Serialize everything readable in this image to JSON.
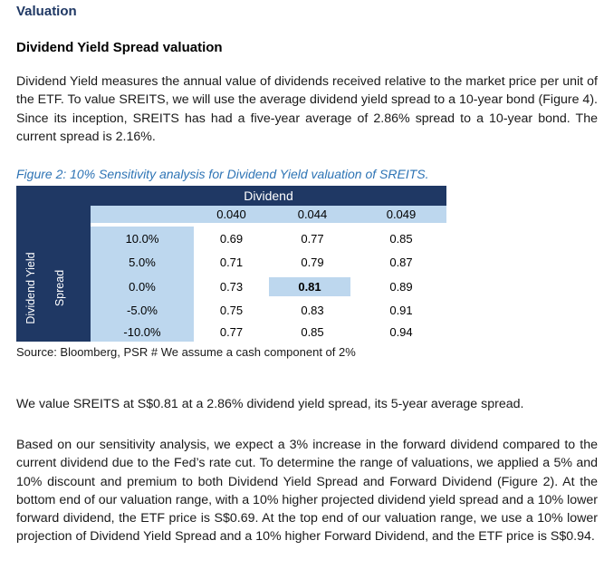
{
  "section_title": "Valuation",
  "sub_title": "Dividend Yield Spread valuation",
  "paragraph1": "Dividend Yield measures the annual value of dividends received relative to the market price per unit of the ETF. To value SREITS, we will use the average dividend yield spread to a 10-year bond (Figure 4). Since its inception, SREITS has had a five-year average of 2.86% spread to a 10-year bond. The current spread is 2.16%.",
  "figure": {
    "caption": "Figure 2: 10% Sensitivity analysis for Dividend Yield valuation of SREITS.",
    "column_group_label": "Dividend",
    "row_group_label_line1": "Dividend Yield",
    "row_group_label_line2": "Spread",
    "columns": [
      "0.040",
      "0.044",
      "0.049"
    ],
    "rows": [
      {
        "spread": "10.0%",
        "values": [
          "0.69",
          "0.77",
          "0.85"
        ]
      },
      {
        "spread": "5.0%",
        "values": [
          "0.71",
          "0.79",
          "0.87"
        ]
      },
      {
        "spread": "0.0%",
        "values": [
          "0.73",
          "0.81",
          "0.89"
        ]
      },
      {
        "spread": "-5.0%",
        "values": [
          "0.75",
          "0.83",
          "0.91"
        ]
      },
      {
        "spread": "-10.0%",
        "values": [
          "0.77",
          "0.85",
          "0.94"
        ]
      }
    ],
    "highlighted_value": "0.81",
    "highlight_color": "#bdd7ee",
    "header_color": "#1f3864",
    "source": "Source: Bloomberg, PSR  # We assume a cash component of 2%"
  },
  "paragraph2": "We value SREITS at S$0.81 at a 2.86% dividend yield spread, its 5-year average spread.",
  "paragraph3": "Based on our sensitivity analysis, we expect a 3% increase in the forward dividend compared to the current dividend due to the Fed’s rate cut. To determine the range of valuations, we applied a 5% and 10% discount and premium to both Dividend Yield Spread and Forward Dividend (Figure 2). At the bottom end of our valuation range, with a 10% higher projected dividend yield spread and a 10% lower forward dividend, the ETF price is S$0.69. At the top end of our valuation range, we use a 10% lower projection of Dividend Yield Spread and a 10% higher Forward Dividend, and the ETF price is S$0.94."
}
